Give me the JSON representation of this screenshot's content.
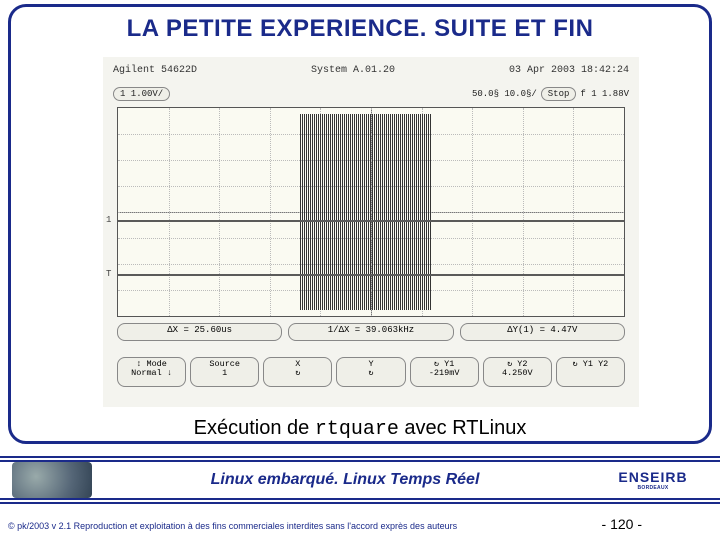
{
  "colors": {
    "frame": "#1a2a8a",
    "title": "#1a2a8a",
    "footer_rule": "#1a2a8a",
    "footer_text": "#1a2a8a",
    "brand": "#1a2a8a",
    "copyright": "#1a2a8a",
    "page_num": "#000000",
    "scope_bg": "#f4f4ef"
  },
  "title": "LA PETITE EXPERIENCE. SUITE ET FIN",
  "scope": {
    "header_left": "Agilent 54622D",
    "header_mid": "System A.01.20",
    "header_right": "03 Apr 2003 18:42:24",
    "top_left": "1 1.00V/",
    "top_mid": "50.0§  10.0§/",
    "top_right_label": "Stop",
    "top_right_trig": "f 1   1.88V",
    "grid": {
      "cols": 10,
      "rows": 8
    },
    "burst": {
      "left_pct": 36,
      "right_pct": 62
    },
    "baselines": [
      {
        "top_pct": 54,
        "label": "1"
      },
      {
        "top_pct": 80,
        "label": "T"
      }
    ],
    "meas": {
      "dx": "ΔX = 25.60us",
      "inv_dx": "1/ΔX = 39.063kHz",
      "dy": "ΔY(1) = 4.47V"
    },
    "softkeys": [
      {
        "l1": "↕ Mode",
        "l2": "Normal ↓"
      },
      {
        "l1": "Source",
        "l2": "1"
      },
      {
        "l1": "X",
        "l2": "↻"
      },
      {
        "l1": "Y",
        "l2": "↻"
      },
      {
        "l1": "↻  Y1",
        "l2": "-219mV"
      },
      {
        "l1": "↻  Y2",
        "l2": "4.250V"
      },
      {
        "l1": "↻ Y1 Y2",
        "l2": ""
      }
    ]
  },
  "caption_pre": "Exécution de ",
  "caption_mono": "rtquare",
  "caption_post": " avec RTLinux",
  "footer_text": "Linux embarqué. Linux Temps Réel",
  "brand": "ENSEIRB",
  "brand_sub": "BORDEAUX",
  "copyright": "© pk/2003 v 2.1  Reproduction et exploitation à des fins commerciales interdites sans l'accord exprès des auteurs",
  "page_num": "- 120 -"
}
